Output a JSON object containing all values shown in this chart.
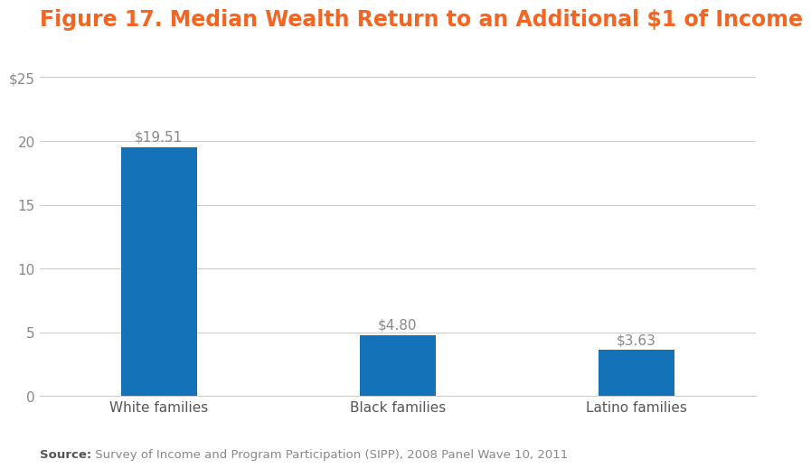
{
  "title": "Figure 17. Median Wealth Return to an Additional $1 of Income",
  "title_color": "#F26522",
  "title_fontsize": 17,
  "categories": [
    "White families",
    "Black families",
    "Latino families"
  ],
  "values": [
    19.51,
    4.8,
    3.63
  ],
  "labels": [
    "$19.51",
    "$4.80",
    "$3.63"
  ],
  "bar_color": "#1472B8",
  "ylim": [
    0,
    25
  ],
  "yticks": [
    0,
    5,
    10,
    15,
    20,
    25
  ],
  "ytick_labels": [
    "0",
    "5",
    "10",
    "15",
    "20",
    "$25"
  ],
  "background_color": "#ffffff",
  "grid_color": "#cccccc",
  "source_bold": "Source:",
  "source_rest": " Survey of Income and Program Participation (SIPP), 2008 Panel Wave 10, 2011",
  "tick_fontsize": 11,
  "annotation_fontsize": 11,
  "source_fontsize": 9.5,
  "bar_width": 0.32
}
